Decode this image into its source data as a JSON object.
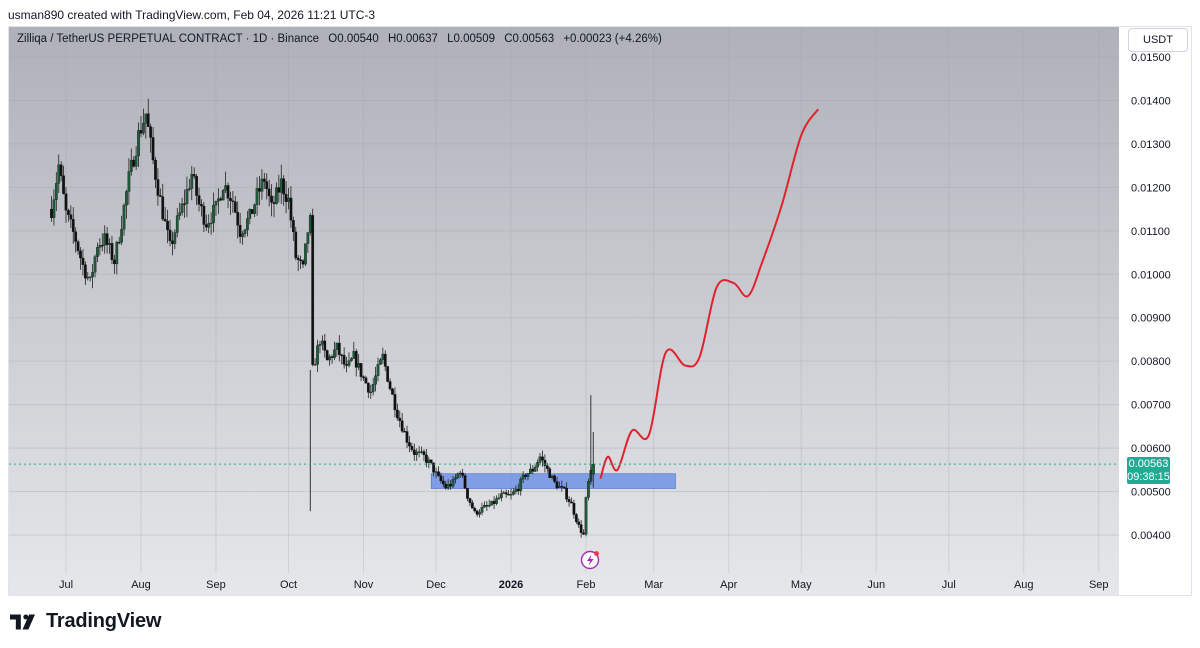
{
  "header": {
    "text": "usman890 created with TradingView.com, Feb 04, 2026 11:21 UTC-3"
  },
  "legend": {
    "symbol": "Zilliqa / TetherUS PERPETUAL CONTRACT · 1D · Binance",
    "open": "O0.00540",
    "high": "H0.00637",
    "low": "L0.00509",
    "close": "C0.00563",
    "change": "+0.00023 (+4.26%)"
  },
  "currency_button": "USDT",
  "price_badge": {
    "price": "0.00563",
    "countdown": "09:38:15"
  },
  "footer": {
    "logo_text": "TradingView"
  },
  "colors": {
    "up_candle": "#1e5a3a",
    "down_candle": "#111111",
    "forecast_line": "#e0222e",
    "zone_fill": "#6f93e6",
    "price_badge": "#22ab94"
  },
  "chart_data": {
    "type": "candlestick",
    "y_axis": {
      "ticks": [
        "0.01500",
        "0.01400",
        "0.01300",
        "0.01200",
        "0.01100",
        "0.01000",
        "0.00900",
        "0.00800",
        "0.00700",
        "0.00600",
        "0.00500",
        "0.00400"
      ],
      "ylim": [
        0.0032,
        0.0155
      ]
    },
    "x_axis": {
      "ticks": [
        "Jul",
        "Aug",
        "Sep",
        "Oct",
        "Nov",
        "Dec",
        "2026",
        "Feb",
        "Mar",
        "Apr",
        "May",
        "Jun",
        "Jul",
        "Aug",
        "Sep"
      ],
      "bold_ticks": [
        "2026"
      ]
    },
    "price_path": [
      [
        "2025-06-25",
        0.0115
      ],
      [
        "2025-06-28",
        0.0125
      ],
      [
        "2025-07-01",
        0.0114
      ],
      [
        "2025-07-05",
        0.0108
      ],
      [
        "2025-07-08",
        0.0102
      ],
      [
        "2025-07-11",
        0.0098
      ],
      [
        "2025-07-14",
        0.0107
      ],
      [
        "2025-07-17",
        0.0108
      ],
      [
        "2025-07-21",
        0.0103
      ],
      [
        "2025-07-24",
        0.0112
      ],
      [
        "2025-07-27",
        0.0122
      ],
      [
        "2025-07-31",
        0.0132
      ],
      [
        "2025-08-03",
        0.0137
      ],
      [
        "2025-08-06",
        0.0126
      ],
      [
        "2025-08-09",
        0.0117
      ],
      [
        "2025-08-13",
        0.0106
      ],
      [
        "2025-08-16",
        0.0112
      ],
      [
        "2025-08-19",
        0.0117
      ],
      [
        "2025-08-22",
        0.0123
      ],
      [
        "2025-08-25",
        0.0116
      ],
      [
        "2025-08-28",
        0.0112
      ],
      [
        "2025-09-01",
        0.0115
      ],
      [
        "2025-09-04",
        0.0121
      ],
      [
        "2025-09-08",
        0.0117
      ],
      [
        "2025-09-11",
        0.011
      ],
      [
        "2025-09-15",
        0.0113
      ],
      [
        "2025-09-18",
        0.0118
      ],
      [
        "2025-09-21",
        0.0122
      ],
      [
        "2025-09-24",
        0.0115
      ],
      [
        "2025-09-28",
        0.0121
      ],
      [
        "2025-10-01",
        0.0117
      ],
      [
        "2025-10-04",
        0.0104
      ],
      [
        "2025-10-07",
        0.0101
      ],
      [
        "2025-10-09",
        0.011
      ],
      [
        "2025-10-10",
        0.0112
      ],
      [
        "2025-10-11",
        0.0078
      ],
      [
        "2025-10-14",
        0.0085
      ],
      [
        "2025-10-17",
        0.008
      ],
      [
        "2025-10-21",
        0.0083
      ],
      [
        "2025-10-25",
        0.0078
      ],
      [
        "2025-10-28",
        0.0081
      ],
      [
        "2025-11-01",
        0.0076
      ],
      [
        "2025-11-04",
        0.0073
      ],
      [
        "2025-11-07",
        0.0078
      ],
      [
        "2025-11-09",
        0.0081
      ],
      [
        "2025-11-12",
        0.0074
      ],
      [
        "2025-11-15",
        0.0068
      ],
      [
        "2025-11-19",
        0.0062
      ],
      [
        "2025-11-22",
        0.0059
      ],
      [
        "2025-11-26",
        0.0058
      ],
      [
        "2025-11-29",
        0.0056
      ],
      [
        "2025-12-02",
        0.0053
      ],
      [
        "2025-12-05",
        0.0051
      ],
      [
        "2025-12-08",
        0.0052
      ],
      [
        "2025-12-11",
        0.0055
      ],
      [
        "2025-12-14",
        0.0049
      ],
      [
        "2025-12-17",
        0.0045
      ],
      [
        "2025-12-20",
        0.0046
      ],
      [
        "2025-12-24",
        0.0047
      ],
      [
        "2025-12-28",
        0.0049
      ],
      [
        "2026-01-01",
        0.0049
      ],
      [
        "2026-01-04",
        0.0051
      ],
      [
        "2026-01-07",
        0.0054
      ],
      [
        "2026-01-10",
        0.0055
      ],
      [
        "2026-01-13",
        0.0058
      ],
      [
        "2026-01-16",
        0.0055
      ],
      [
        "2026-01-19",
        0.0052
      ],
      [
        "2026-01-23",
        0.005
      ],
      [
        "2026-01-26",
        0.0047
      ],
      [
        "2026-01-29",
        0.0042
      ],
      [
        "2026-01-31",
        0.004
      ],
      [
        "2026-02-01",
        0.0048
      ],
      [
        "2026-02-02",
        0.0052
      ],
      [
        "2026-02-03",
        0.0054
      ],
      [
        "2026-02-04",
        0.00563
      ]
    ],
    "last_price": 0.00563,
    "current_candle": {
      "date": "2026-02-04",
      "open": 0.0054,
      "high": 0.00637,
      "low": 0.00509,
      "close": 0.00563
    },
    "spikes": [
      {
        "date": "2025-10-10",
        "low": 0.00455
      },
      {
        "date": "2026-02-03",
        "high": 0.00722
      }
    ],
    "zone": {
      "from": "2025-11-29",
      "to": "2026-03-10",
      "low": 0.00507,
      "high": 0.00541,
      "color": "#6f93e6"
    },
    "forecast_line": [
      [
        "2026-02-07",
        0.0053
      ],
      [
        "2026-02-10",
        0.0058
      ],
      [
        "2026-02-14",
        0.0055
      ],
      [
        "2026-02-20",
        0.0064
      ],
      [
        "2026-02-27",
        0.0063
      ],
      [
        "2026-03-06",
        0.0082
      ],
      [
        "2026-03-14",
        0.0079
      ],
      [
        "2026-03-20",
        0.0081
      ],
      [
        "2026-03-27",
        0.0097
      ],
      [
        "2026-04-03",
        0.0098
      ],
      [
        "2026-04-09",
        0.0095
      ],
      [
        "2026-04-15",
        0.0103
      ],
      [
        "2026-04-23",
        0.0116
      ],
      [
        "2026-05-01",
        0.0132
      ],
      [
        "2026-05-08",
        0.0138
      ]
    ]
  }
}
